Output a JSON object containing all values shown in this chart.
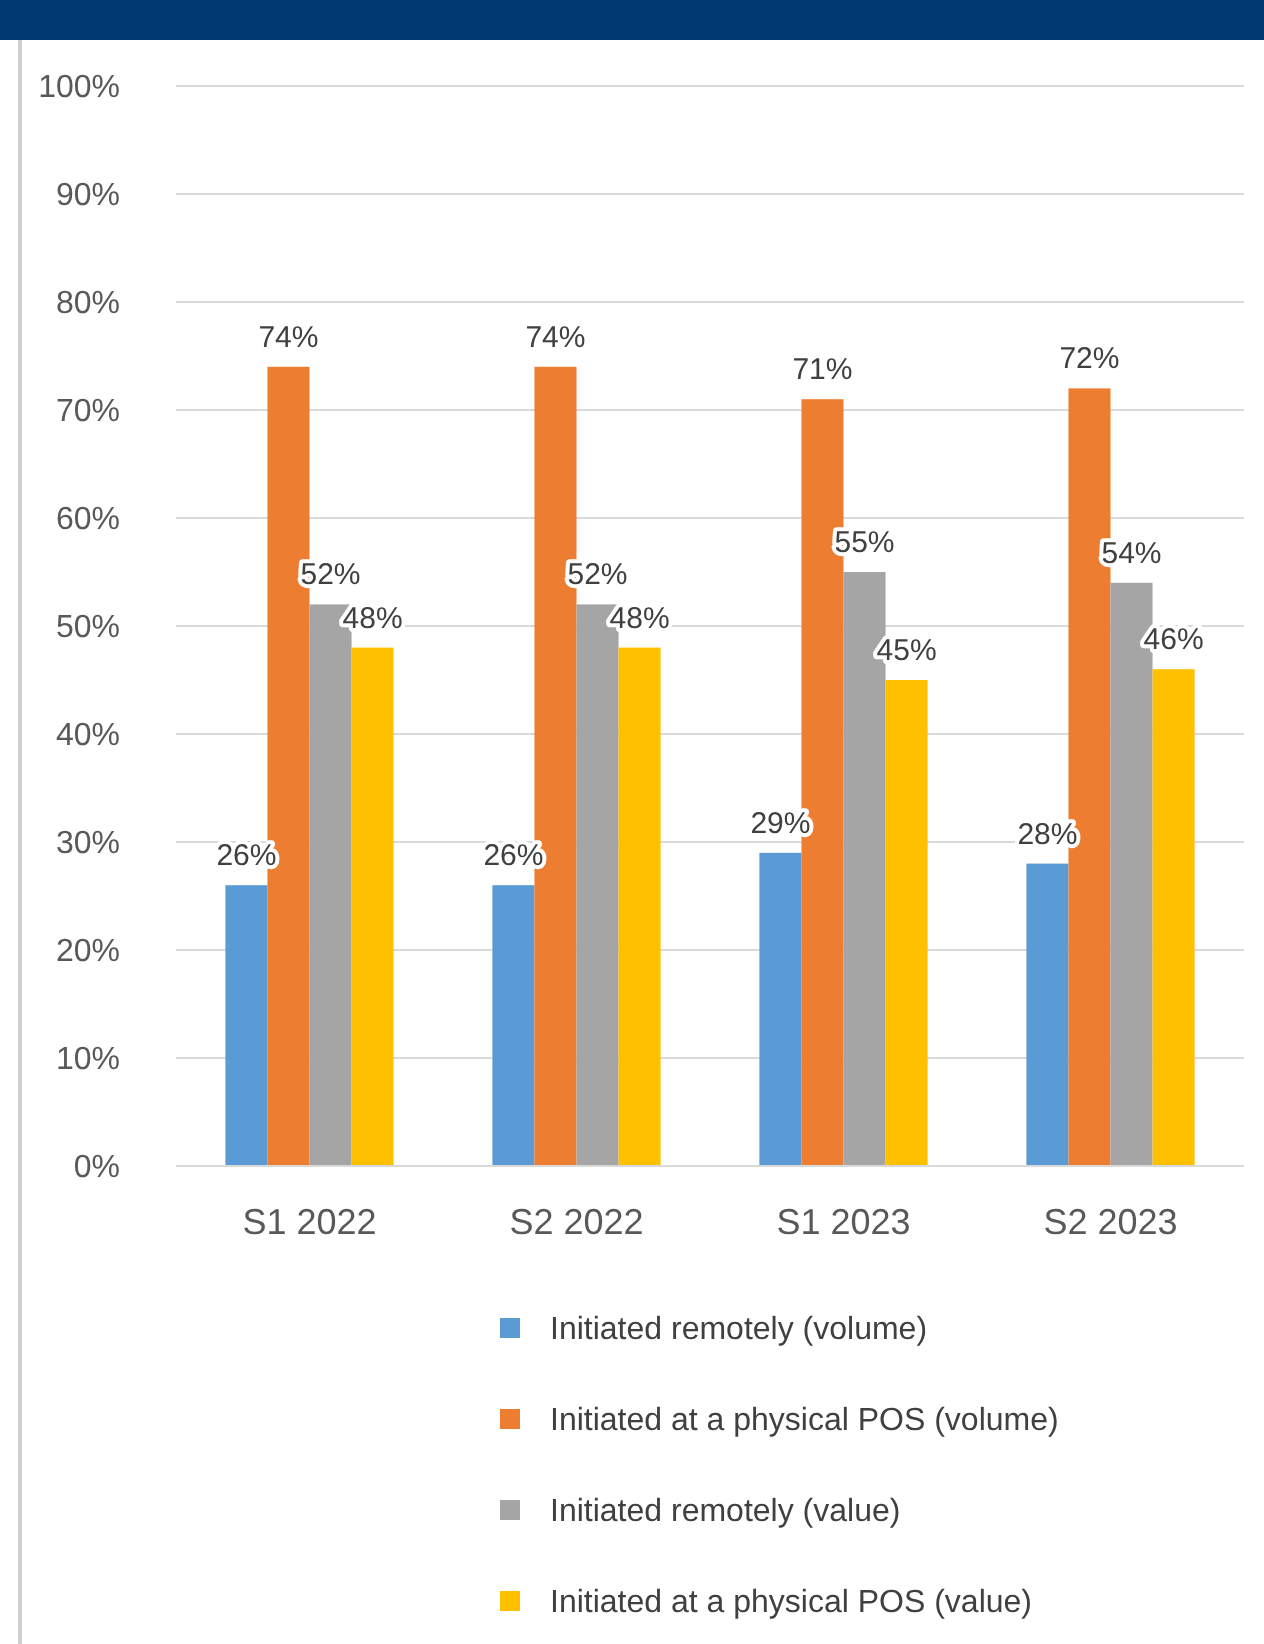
{
  "chart_data": {
    "type": "bar",
    "categories": [
      "S1 2022",
      "S2 2022",
      "S1 2023",
      "S2 2023"
    ],
    "series": [
      {
        "name": "Initiated remotely (volume)",
        "color": "#5b9bd5",
        "values": [
          26,
          26,
          29,
          28
        ],
        "value_labels": [
          "26%",
          "26%",
          "29%",
          "28%"
        ]
      },
      {
        "name": "Initiated at a physical POS (volume)",
        "color": "#ed7d31",
        "values": [
          74,
          74,
          71,
          72
        ],
        "value_labels": [
          "74%",
          "74%",
          "71%",
          "72%"
        ]
      },
      {
        "name": "Initiated remotely (value)",
        "color": "#a5a5a5",
        "values": [
          52,
          52,
          55,
          54
        ],
        "value_labels": [
          "52%",
          "52%",
          "55%",
          "54%"
        ]
      },
      {
        "name": "Initiated at a physical POS (value)",
        "color": "#ffc000",
        "values": [
          48,
          48,
          45,
          46
        ],
        "value_labels": [
          "48%",
          "48%",
          "45%",
          "46%"
        ]
      }
    ],
    "ylim": [
      0,
      100
    ],
    "yticks": [
      {
        "value": 0,
        "label": "0%"
      },
      {
        "value": 10,
        "label": "10%"
      },
      {
        "value": 20,
        "label": "20%"
      },
      {
        "value": 30,
        "label": "30%"
      },
      {
        "value": 40,
        "label": "40%"
      },
      {
        "value": 50,
        "label": "50%"
      },
      {
        "value": 60,
        "label": "60%"
      },
      {
        "value": 70,
        "label": "70%"
      },
      {
        "value": 80,
        "label": "80%"
      },
      {
        "value": 90,
        "label": "90%"
      },
      {
        "value": 100,
        "label": "100%"
      }
    ],
    "grid": "y",
    "legend": "bottom"
  }
}
